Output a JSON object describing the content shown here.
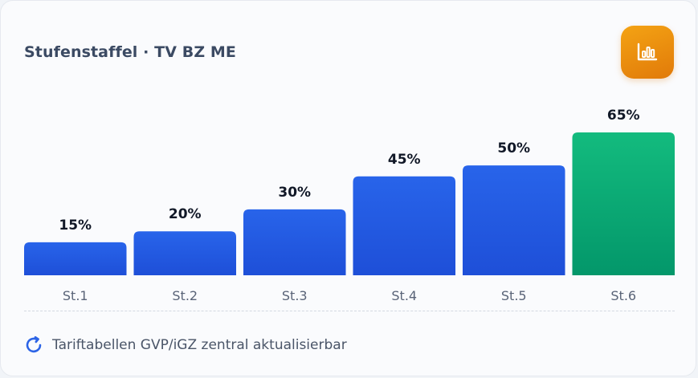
{
  "card": {
    "title": "Stufenstaffel · TV BZ ME",
    "badge_icon": "bar-chart-icon",
    "footer_icon": "refresh-icon",
    "footer_note": "Tariftabellen GVP/iGZ zentral aktualisierbar"
  },
  "colors": {
    "bar_blue_top": "#2864ea",
    "bar_blue_bottom": "#1e4fd8",
    "bar_green_top": "#13bb7e",
    "bar_green_bottom": "#03976a",
    "badge": "#ef9410",
    "refresh_icon": "#2c64e6"
  },
  "chart_data": {
    "type": "bar",
    "categories": [
      "St.1",
      "St.2",
      "St.3",
      "St.4",
      "St.5",
      "St.6"
    ],
    "values": [
      15,
      20,
      30,
      45,
      50,
      65
    ],
    "value_labels": [
      "15%",
      "20%",
      "30%",
      "45%",
      "50%",
      "65%"
    ],
    "highlight_index": 5,
    "ylim": [
      0,
      65
    ],
    "grid": false,
    "legend": "none"
  }
}
